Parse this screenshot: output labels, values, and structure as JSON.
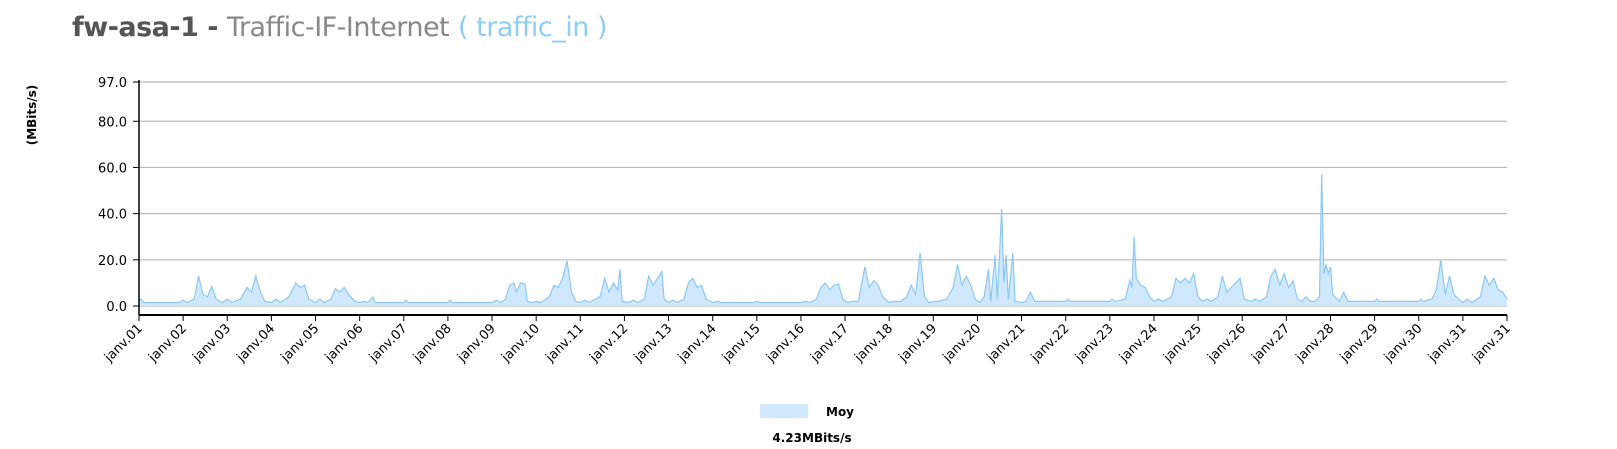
{
  "header": {
    "host": "fw-asa-1",
    "separator": " - ",
    "interface": "Traffic-IF-Internet",
    "metric": "( traffic_in )"
  },
  "colors": {
    "fill": "#cfe8fb",
    "stroke": "#8ec8f2",
    "grid": "#bbbbbb",
    "axis": "#000000"
  },
  "chart_data": {
    "type": "area",
    "title": "",
    "xlabel": "",
    "ylabel": "(MBits/s)",
    "ylim": [
      0,
      97
    ],
    "y_ticks": [
      {
        "value": 0,
        "label": "0.0"
      },
      {
        "value": 20,
        "label": "20.0"
      },
      {
        "value": 40,
        "label": "40.0"
      },
      {
        "value": 60,
        "label": "60.0"
      },
      {
        "value": 80,
        "label": "80.0"
      },
      {
        "value": 97,
        "label": "97.0"
      }
    ],
    "grid": true,
    "x_ticks": [
      "janv.01",
      "janv.02",
      "janv.03",
      "janv.04",
      "janv.05",
      "janv.06",
      "janv.07",
      "janv.08",
      "janv.09",
      "janv.10",
      "janv.11",
      "janv.12",
      "janv.13",
      "janv.14",
      "janv.15",
      "janv.16",
      "janv.17",
      "janv.18",
      "janv.19",
      "janv.20",
      "janv.21",
      "janv.22",
      "janv.23",
      "janv.24",
      "janv.25",
      "janv.26",
      "janv.27",
      "janv.28",
      "janv.29",
      "janv.30",
      "janv.31",
      "janv.31"
    ],
    "x_range": [
      1,
      32
    ],
    "series": [
      {
        "name": "Moy",
        "summary": "4.23MBits/s",
        "points": [
          [
            1.0,
            2
          ],
          [
            1.05,
            3
          ],
          [
            1.1,
            1.5
          ],
          [
            1.5,
            1.5
          ],
          [
            1.9,
            1.5
          ],
          [
            2.0,
            2.5
          ],
          [
            2.1,
            1.5
          ],
          [
            2.25,
            3
          ],
          [
            2.35,
            13
          ],
          [
            2.45,
            5
          ],
          [
            2.55,
            4
          ],
          [
            2.65,
            8.5
          ],
          [
            2.75,
            3
          ],
          [
            2.9,
            1.5
          ],
          [
            3.0,
            3
          ],
          [
            3.1,
            1.5
          ],
          [
            3.3,
            3
          ],
          [
            3.45,
            8
          ],
          [
            3.55,
            6
          ],
          [
            3.65,
            13
          ],
          [
            3.75,
            6
          ],
          [
            3.85,
            2
          ],
          [
            4.0,
            1.5
          ],
          [
            4.1,
            3
          ],
          [
            4.2,
            1.5
          ],
          [
            4.4,
            4
          ],
          [
            4.55,
            10
          ],
          [
            4.65,
            8
          ],
          [
            4.75,
            9
          ],
          [
            4.85,
            3
          ],
          [
            5.0,
            1.5
          ],
          [
            5.1,
            3
          ],
          [
            5.2,
            1.5
          ],
          [
            5.35,
            3
          ],
          [
            5.45,
            7.5
          ],
          [
            5.55,
            6
          ],
          [
            5.65,
            8
          ],
          [
            5.75,
            5
          ],
          [
            5.9,
            2
          ],
          [
            6.0,
            1.5
          ],
          [
            6.1,
            2
          ],
          [
            6.2,
            1.5
          ],
          [
            6.3,
            4
          ],
          [
            6.35,
            1.5
          ],
          [
            7.0,
            1.5
          ],
          [
            7.05,
            2.5
          ],
          [
            7.1,
            1.5
          ],
          [
            8.0,
            1.5
          ],
          [
            8.05,
            2.5
          ],
          [
            8.1,
            1.5
          ],
          [
            9.0,
            1.5
          ],
          [
            9.1,
            2.5
          ],
          [
            9.2,
            1.5
          ],
          [
            9.3,
            3
          ],
          [
            9.4,
            9
          ],
          [
            9.5,
            10
          ],
          [
            9.55,
            6
          ],
          [
            9.65,
            10
          ],
          [
            9.75,
            9.5
          ],
          [
            9.8,
            2
          ],
          [
            9.9,
            1.5
          ],
          [
            10.0,
            2
          ],
          [
            10.1,
            1.5
          ],
          [
            10.3,
            4
          ],
          [
            10.4,
            9
          ],
          [
            10.5,
            8
          ],
          [
            10.6,
            12
          ],
          [
            10.7,
            19.5
          ],
          [
            10.8,
            6
          ],
          [
            10.9,
            2
          ],
          [
            11.0,
            1.5
          ],
          [
            11.1,
            2.5
          ],
          [
            11.2,
            1.5
          ],
          [
            11.45,
            4
          ],
          [
            11.55,
            12
          ],
          [
            11.65,
            6
          ],
          [
            11.75,
            10
          ],
          [
            11.85,
            7
          ],
          [
            11.9,
            16
          ],
          [
            11.95,
            2
          ],
          [
            12.1,
            1.5
          ],
          [
            12.2,
            2.5
          ],
          [
            12.3,
            1.5
          ],
          [
            12.45,
            3
          ],
          [
            12.55,
            13
          ],
          [
            12.65,
            9
          ],
          [
            12.75,
            12
          ],
          [
            12.85,
            15
          ],
          [
            12.9,
            3
          ],
          [
            13.0,
            1.5
          ],
          [
            13.1,
            2.5
          ],
          [
            13.2,
            1.5
          ],
          [
            13.35,
            3
          ],
          [
            13.45,
            10
          ],
          [
            13.55,
            12
          ],
          [
            13.65,
            8
          ],
          [
            13.75,
            9
          ],
          [
            13.85,
            3
          ],
          [
            14.0,
            1.5
          ],
          [
            14.1,
            2
          ],
          [
            14.2,
            1.5
          ],
          [
            14.9,
            1.5
          ],
          [
            15.0,
            2
          ],
          [
            15.1,
            1.5
          ],
          [
            16.0,
            1.5
          ],
          [
            16.1,
            2
          ],
          [
            16.2,
            1.5
          ],
          [
            16.35,
            3
          ],
          [
            16.45,
            8
          ],
          [
            16.55,
            10
          ],
          [
            16.65,
            7
          ],
          [
            16.75,
            9
          ],
          [
            16.85,
            9.5
          ],
          [
            16.95,
            3
          ],
          [
            17.05,
            1.5
          ],
          [
            17.15,
            2
          ],
          [
            17.3,
            2
          ],
          [
            17.45,
            17
          ],
          [
            17.55,
            8
          ],
          [
            17.65,
            11
          ],
          [
            17.75,
            9
          ],
          [
            17.85,
            4
          ],
          [
            18.0,
            1.5
          ],
          [
            18.1,
            2
          ],
          [
            18.25,
            2
          ],
          [
            18.4,
            4
          ],
          [
            18.5,
            9
          ],
          [
            18.6,
            5
          ],
          [
            18.7,
            23
          ],
          [
            18.8,
            4
          ],
          [
            18.9,
            1.5
          ],
          [
            19.1,
            2
          ],
          [
            19.3,
            3
          ],
          [
            19.45,
            8
          ],
          [
            19.55,
            18
          ],
          [
            19.65,
            9
          ],
          [
            19.75,
            13
          ],
          [
            19.85,
            9
          ],
          [
            19.95,
            3
          ],
          [
            20.05,
            1.5
          ],
          [
            20.15,
            4
          ],
          [
            20.25,
            16
          ],
          [
            20.3,
            2
          ],
          [
            20.4,
            22
          ],
          [
            20.45,
            3
          ],
          [
            20.55,
            42
          ],
          [
            20.6,
            10
          ],
          [
            20.65,
            22
          ],
          [
            20.7,
            3
          ],
          [
            20.8,
            23
          ],
          [
            20.85,
            2
          ],
          [
            21.0,
            1.5
          ],
          [
            21.1,
            2
          ],
          [
            21.2,
            6
          ],
          [
            21.3,
            2
          ],
          [
            22.0,
            2
          ],
          [
            22.05,
            3
          ],
          [
            22.1,
            2
          ],
          [
            23.0,
            2
          ],
          [
            23.05,
            3
          ],
          [
            23.1,
            2
          ],
          [
            23.35,
            3
          ],
          [
            23.45,
            11
          ],
          [
            23.5,
            8
          ],
          [
            23.55,
            30
          ],
          [
            23.6,
            12
          ],
          [
            23.7,
            9
          ],
          [
            23.8,
            8
          ],
          [
            23.9,
            4
          ],
          [
            24.0,
            2
          ],
          [
            24.1,
            3
          ],
          [
            24.2,
            2
          ],
          [
            24.4,
            4
          ],
          [
            24.5,
            12
          ],
          [
            24.6,
            10
          ],
          [
            24.7,
            12
          ],
          [
            24.8,
            10
          ],
          [
            24.9,
            14
          ],
          [
            25.0,
            4
          ],
          [
            25.1,
            2
          ],
          [
            25.2,
            3
          ],
          [
            25.3,
            2
          ],
          [
            25.45,
            4
          ],
          [
            25.55,
            13
          ],
          [
            25.65,
            6
          ],
          [
            25.75,
            8
          ],
          [
            25.85,
            10
          ],
          [
            25.95,
            12
          ],
          [
            26.05,
            3
          ],
          [
            26.2,
            2
          ],
          [
            26.3,
            3
          ],
          [
            26.4,
            2
          ],
          [
            26.55,
            4
          ],
          [
            26.65,
            13
          ],
          [
            26.75,
            16
          ],
          [
            26.85,
            9
          ],
          [
            26.95,
            14
          ],
          [
            27.05,
            8
          ],
          [
            27.15,
            11
          ],
          [
            27.25,
            3
          ],
          [
            27.35,
            2
          ],
          [
            27.45,
            4
          ],
          [
            27.55,
            2
          ],
          [
            27.65,
            2
          ],
          [
            27.75,
            4
          ],
          [
            27.8,
            57
          ],
          [
            27.85,
            14
          ],
          [
            27.9,
            18
          ],
          [
            27.95,
            14
          ],
          [
            28.0,
            17
          ],
          [
            28.05,
            5
          ],
          [
            28.2,
            2
          ],
          [
            28.3,
            6
          ],
          [
            28.4,
            2
          ],
          [
            29.0,
            2
          ],
          [
            29.05,
            3
          ],
          [
            29.1,
            2
          ],
          [
            30.0,
            2
          ],
          [
            30.05,
            3
          ],
          [
            30.1,
            2
          ],
          [
            30.3,
            3
          ],
          [
            30.4,
            7
          ],
          [
            30.5,
            20
          ],
          [
            30.6,
            5
          ],
          [
            30.7,
            13
          ],
          [
            30.8,
            5
          ],
          [
            30.9,
            3
          ],
          [
            31.0,
            1.5
          ],
          [
            31.1,
            3
          ],
          [
            31.2,
            1.5
          ],
          [
            31.4,
            4
          ],
          [
            31.5,
            13
          ],
          [
            31.6,
            9
          ],
          [
            31.7,
            12
          ],
          [
            31.8,
            7
          ],
          [
            31.9,
            6
          ],
          [
            32.0,
            3
          ]
        ]
      }
    ],
    "legend": {
      "placement": "bottom-center",
      "entries": [
        {
          "label": "Moy",
          "value": "4.23MBits/s"
        }
      ]
    }
  }
}
